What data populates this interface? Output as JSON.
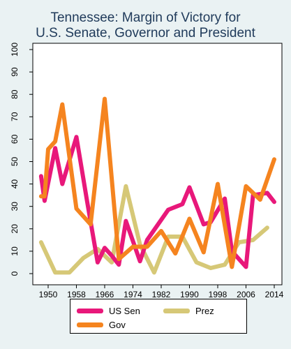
{
  "chart_data": {
    "type": "line",
    "title": "Tennessee: Margin of Victory for",
    "subtitle": "U.S. Senate, Governor and President",
    "xlabel": "",
    "ylabel": "",
    "xlim": [
      1945,
      2016
    ],
    "ylim": [
      0,
      100
    ],
    "xticks": [
      "1950",
      "1958",
      "1966",
      "1974",
      "1982",
      "1990",
      "1998",
      "2006",
      "2014"
    ],
    "yticks": [
      "0",
      "10",
      "20",
      "30",
      "40",
      "50",
      "60",
      "70",
      "80",
      "90",
      "100"
    ],
    "grid": false,
    "legend_position": "bottom",
    "series": [
      {
        "name": "US Sen",
        "color": "#e8187a",
        "x": [
          1948,
          1949,
          1952,
          1954,
          1958,
          1961,
          1964,
          1966,
          1968,
          1970,
          1972,
          1976,
          1978,
          1982,
          1984,
          1988,
          1990,
          1994,
          1996,
          2000,
          2002,
          2006,
          2008,
          2012,
          2014
        ],
        "y": [
          43.5,
          32.5,
          56,
          40,
          61,
          32.5,
          5,
          11.5,
          8,
          4,
          23.5,
          5.5,
          15,
          24,
          28.5,
          31,
          38.5,
          22,
          23,
          33.5,
          10,
          3,
          35,
          36,
          32
        ]
      },
      {
        "name": "Prez",
        "color": "#d6c877",
        "x": [
          1948,
          1952,
          1956,
          1960,
          1964,
          1968,
          1972,
          1976,
          1980,
          1984,
          1988,
          1992,
          1996,
          2000,
          2004,
          2008,
          2012
        ],
        "y": [
          14,
          0.5,
          0.5,
          7,
          11,
          5,
          39,
          13,
          0.5,
          16.5,
          16.5,
          5,
          2.5,
          4,
          14,
          15,
          20.5
        ]
      },
      {
        "name": "Gov",
        "color": "#f5841f",
        "x": [
          1948,
          1949,
          1950,
          1952,
          1954,
          1958,
          1962,
          1966,
          1970,
          1974,
          1978,
          1982,
          1986,
          1990,
          1994,
          1998,
          2002,
          2006,
          2010,
          2014
        ],
        "y": [
          34.5,
          34.5,
          55.5,
          59,
          75.5,
          29,
          22,
          78,
          6.5,
          12,
          12,
          19,
          9,
          24.5,
          9.5,
          40,
          3,
          39,
          33,
          51
        ]
      }
    ]
  }
}
